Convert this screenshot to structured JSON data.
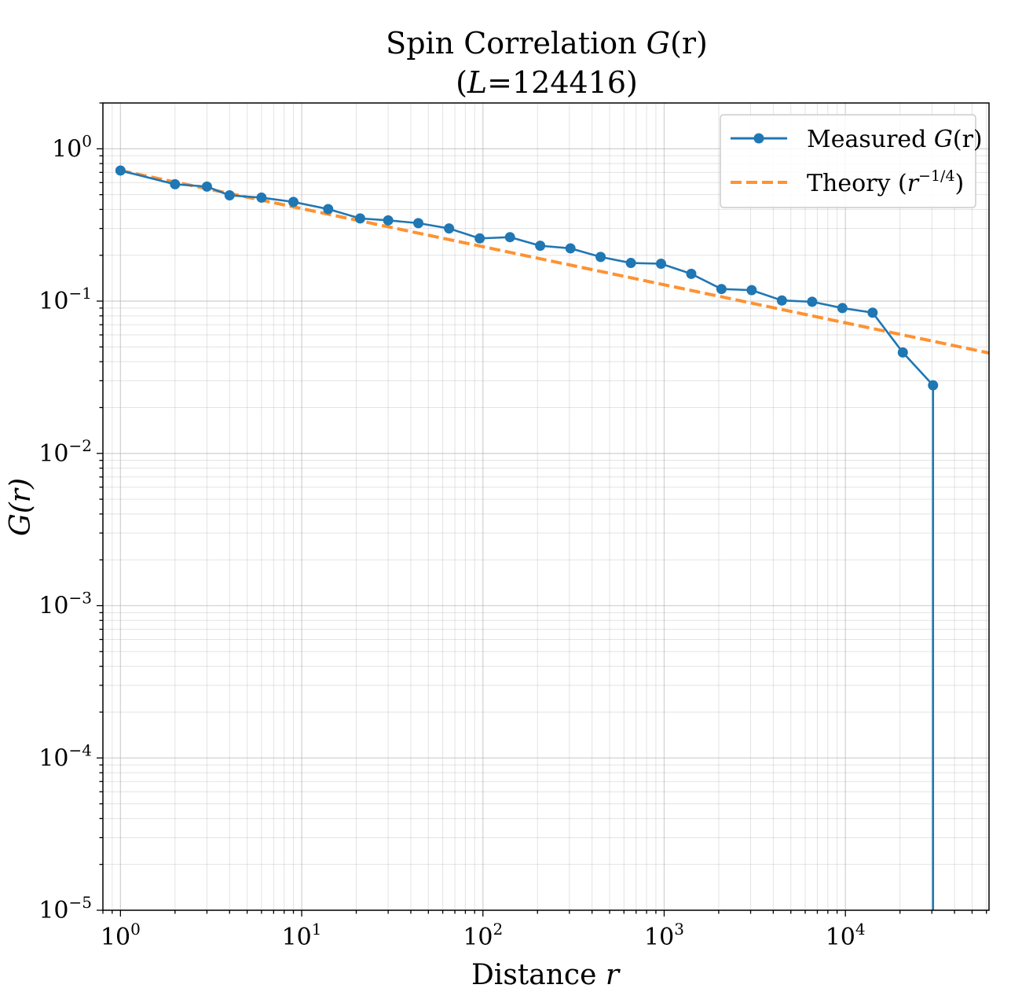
{
  "chart_data": {
    "type": "line",
    "title_line1": "Spin Correlation ",
    "title_func": "G",
    "title_arg": "(r)",
    "title_line2_pre": "(",
    "title_line2_var": "L",
    "title_line2_eq": "=124416)",
    "xlabel_text": "Distance ",
    "xlabel_var": "r",
    "ylabel_var": "G",
    "ylabel_arg": "(r)",
    "x_scale": "log",
    "y_scale": "log",
    "xlim": [
      0.8,
      62000
    ],
    "ylim": [
      1e-05,
      2.0
    ],
    "grid": true,
    "legend_position": "top-right",
    "x_ticks": [
      {
        "value": 1,
        "base": "10",
        "exp": "0"
      },
      {
        "value": 10,
        "base": "10",
        "exp": "1"
      },
      {
        "value": 100,
        "base": "10",
        "exp": "2"
      },
      {
        "value": 1000,
        "base": "10",
        "exp": "3"
      },
      {
        "value": 10000,
        "base": "10",
        "exp": "4"
      }
    ],
    "y_ticks": [
      {
        "value": 1e-05,
        "base": "10",
        "exp": "−5"
      },
      {
        "value": 0.0001,
        "base": "10",
        "exp": "−4"
      },
      {
        "value": 0.001,
        "base": "10",
        "exp": "−3"
      },
      {
        "value": 0.01,
        "base": "10",
        "exp": "−2"
      },
      {
        "value": 0.1,
        "base": "10",
        "exp": "−1"
      },
      {
        "value": 1,
        "base": "10",
        "exp": "0"
      }
    ],
    "series": [
      {
        "name": "Measured G(r)",
        "legend_text": "Measured ",
        "legend_func": "G",
        "legend_arg": "(r)",
        "color": "#1f77b4",
        "style": "solid-markers",
        "x": [
          1,
          2,
          3,
          4,
          6,
          9,
          14,
          21,
          30,
          44,
          65,
          96,
          141,
          207,
          304,
          446,
          655,
          961,
          1411,
          2071,
          3040,
          4463,
          6553,
          9622,
          14128,
          20740,
          30450
        ],
        "y": [
          0.72,
          0.585,
          0.565,
          0.495,
          0.478,
          0.448,
          0.402,
          0.349,
          0.339,
          0.325,
          0.3,
          0.258,
          0.263,
          0.231,
          0.222,
          0.195,
          0.178,
          0.176,
          0.151,
          0.12,
          0.118,
          0.101,
          0.099,
          0.09,
          0.084,
          0.046,
          0.028
        ],
        "drop_to_axis_at_end": true
      },
      {
        "name": "Theory (r^-1/4)",
        "legend_text": "Theory (",
        "legend_var": "r",
        "legend_exp": "−1/4",
        "legend_close": ")",
        "color": "#ff7f0e",
        "style": "dashed",
        "formula": "0.72 * r^-0.25",
        "x": [
          1,
          62000
        ]
      }
    ]
  }
}
